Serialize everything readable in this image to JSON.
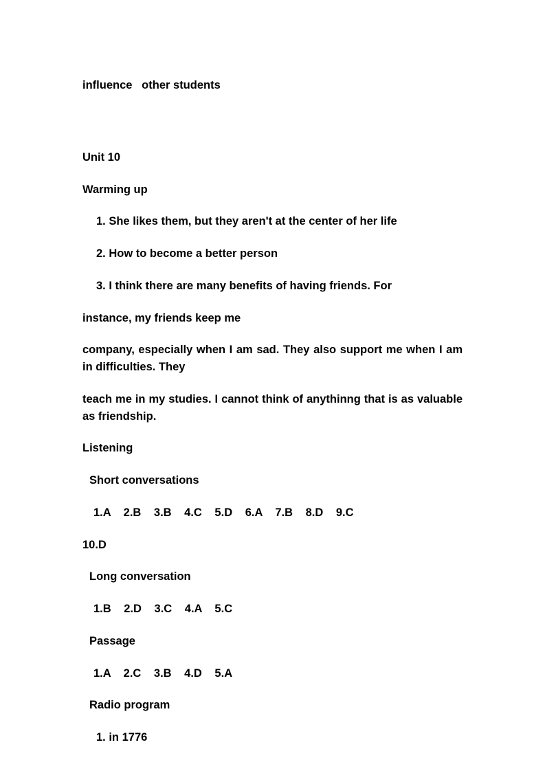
{
  "header_line": "influence   other students",
  "unit_title": "Unit 10",
  "warming_up_label": "Warming up",
  "warming_items": {
    "item1": "1. She likes them, but they aren't at the center of her life",
    "item2": "2. How to become a better person",
    "item3_part1": "3. I think there are many benefits of having friends. For",
    "item3_part2": "instance, my friends keep me",
    "item3_part3": "company, especially when I am sad. They also support me when I am in difficulties. They",
    "item3_part4": "teach me in my studies. I cannot think of anythinng that is as valuable as friendship."
  },
  "listening_label": "Listening",
  "short_conversations": {
    "label": "Short conversations",
    "answers_line1": "1.A  2.B  3.B  4.C  5.D  6.A  7.B  8.D   9.C",
    "answers_line2": "10.D"
  },
  "long_conversation": {
    "label": "Long conversation",
    "answers": "1.B  2.D  3.C  4.A  5.C"
  },
  "passage": {
    "label": "Passage",
    "answers": "1.A  2.C  3.B  4.D  5.A"
  },
  "radio_program": {
    "label": "Radio program",
    "item1": "1. in 1776"
  }
}
